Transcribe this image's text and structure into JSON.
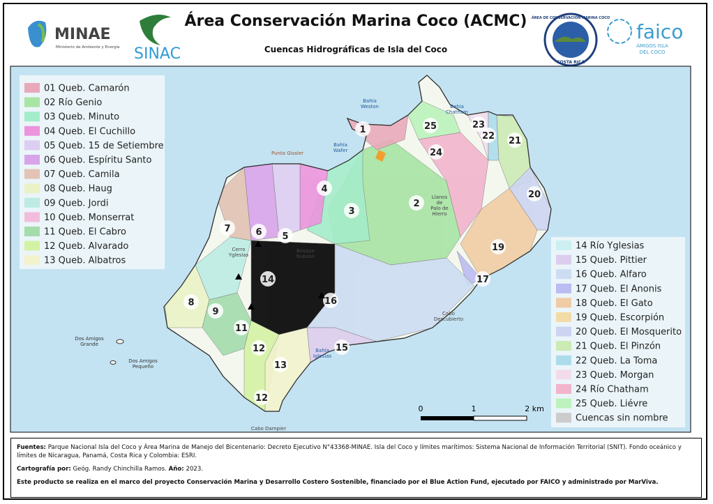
{
  "header": {
    "minae": {
      "name": "MINAE",
      "subtitle": "Ministerio de Ambiente y Energía"
    },
    "sinac": "SINAC",
    "title": "Área Conservación Marina Coco (ACMC)",
    "subtitle": "Cuencas Hidrográficas de Isla del Coco",
    "acmc_logo": {
      "ring": "ÁREA DE CONSERVACIÓN MARINA COCO",
      "bottom": "COSTA RICA"
    },
    "faico": {
      "name": "faico",
      "subtitle": [
        "AMIGOS ISLA",
        "DEL COCO"
      ]
    }
  },
  "legend_left": [
    {
      "label": "01 Queb. Camarón",
      "color": "#e9a9bb"
    },
    {
      "label": "02 Río Genio",
      "color": "#a8e4a4"
    },
    {
      "label": "03 Queb. Minuto",
      "color": "#a4ecca"
    },
    {
      "label": "04 Queb. El Cuchillo",
      "color": "#ec94dc"
    },
    {
      "label": "05 Queb. 15 de Setiembre",
      "color": "#dccdf2"
    },
    {
      "label": "06 Queb. Espíritu Santo",
      "color": "#d8a4ea"
    },
    {
      "label": "07 Queb. Camila",
      "color": "#e2c3b4"
    },
    {
      "label": "08 Queb. Haug",
      "color": "#eaf2c6"
    },
    {
      "label": "09 Queb. Jordi",
      "color": "#bcebe4"
    },
    {
      "label": "10 Queb. Monserrat",
      "color": "#f2bcdc"
    },
    {
      "label": "11 Queb. El Cabro",
      "color": "#a4dcac"
    },
    {
      "label": "12 Queb. Alvarado",
      "color": "#d4f2a4"
    },
    {
      "label": "13 Queb. Albatros",
      "color": "#f2f2cc"
    }
  ],
  "legend_right": [
    {
      "label": "14 Río Yglesias",
      "color": "#ccf0f2"
    },
    {
      "label": "15 Queb. Pittier",
      "color": "#dccdee"
    },
    {
      "label": "16 Queb. Alfaro",
      "color": "#ccdcf2"
    },
    {
      "label": "17 Queb. El Anonis",
      "color": "#bcbcf2"
    },
    {
      "label": "18 Queb. El Gato",
      "color": "#f0cca4"
    },
    {
      "label": "19 Queb. Escorpión",
      "color": "#f2dca6"
    },
    {
      "label": "20 Queb. El Mosquerito",
      "color": "#ccd4f2"
    },
    {
      "label": "21 Queb. El Pinzón",
      "color": "#cceab4"
    },
    {
      "label": "22 Queb. La Toma",
      "color": "#acdcec"
    },
    {
      "label": "23 Queb. Morgan",
      "color": "#f2dcec"
    },
    {
      "label": "24 Río Chatham",
      "color": "#f2b4cc"
    },
    {
      "label": "25 Queb. Liévre",
      "color": "#bcf2bc"
    },
    {
      "label": "Cuencas sin nombre",
      "color": "#cccccc"
    }
  ],
  "basin_labels": [
    "1",
    "25",
    "23",
    "22",
    "21",
    "24",
    "20",
    "4",
    "3",
    "2",
    "7",
    "6",
    "5",
    "19",
    "17",
    "14",
    "16",
    "8",
    "9",
    "11",
    "12",
    "15",
    "13",
    "12"
  ],
  "place_labels": [
    [
      "Bahía",
      "Weston"
    ],
    [
      "Bahía",
      "Chatham"
    ],
    [
      "Bahía",
      "Wafer"
    ],
    [
      "Punta Gissler"
    ],
    [
      "Llanos",
      "de",
      "Palo de",
      "Hierro"
    ],
    [
      "Bosque",
      "Nuboso"
    ],
    [
      "Cerro",
      "Yglesias"
    ],
    [
      "Dos Amigos",
      "Grande"
    ],
    [
      "Dos Amigos",
      "Pequeño"
    ],
    [
      "Bahía",
      "Iglesias"
    ],
    [
      "Cabo",
      "Descubierto"
    ],
    [
      "Cabo Dampier"
    ]
  ],
  "scale": {
    "labels": [
      "0",
      "1",
      "2 km"
    ]
  },
  "footer": {
    "fuentes_label": "Fuentes:",
    "fuentes_text": "Parque Nacional Isla del Coco y Área Marina de Manejo del Bicentenario: Decreto Ejecutivo N°43368-MINAE. Isla del Coco y límites marítimos: Sistema Nacional de Información Territorial (SNIT). Fondo oceánico y límites de Nicaragua, Panamá, Costa Rica y Colombia: ESRI.",
    "cartografia_label": "Cartografía por:",
    "cartografia_text": "Geóg. Randy Chinchilla Ramos.",
    "anio_label": "Año:",
    "anio": "2023.",
    "note": "Este producto se realiza en el marco del proyecto Conservación Marina y Desarrollo Costero Sostenible, financiado por el Blue Action Fund, ejecutado por FAICO y administrado por MarViva."
  }
}
